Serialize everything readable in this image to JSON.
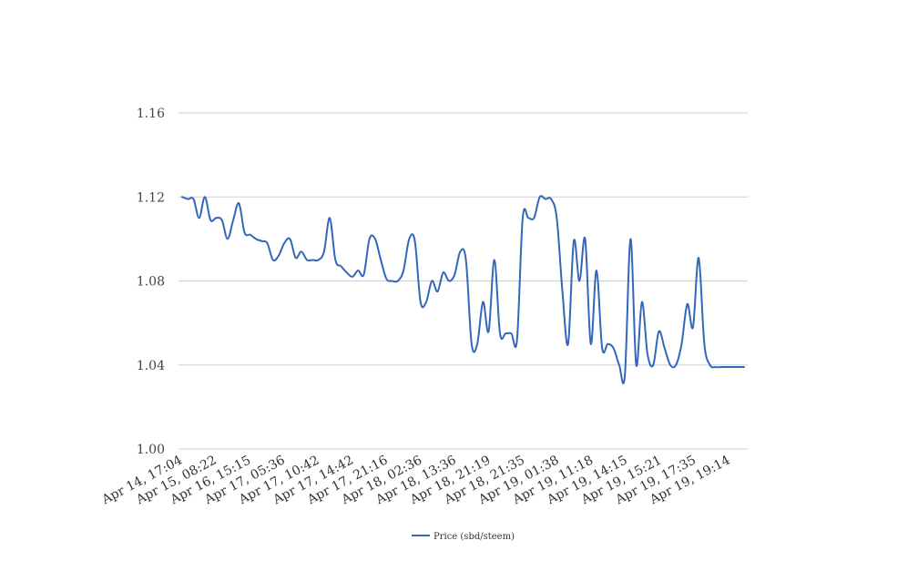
{
  "chart_data": {
    "type": "line",
    "title": "",
    "xlabel": "",
    "ylabel": "",
    "ylim": [
      1.0,
      1.16
    ],
    "yticks": [
      "1.00",
      "1.04",
      "1.08",
      "1.12",
      "1.16"
    ],
    "yticks_values": [
      1.0,
      1.04,
      1.08,
      1.12,
      1.16
    ],
    "grid": true,
    "legend_position": "bottom",
    "xtick_labels": [
      "Apr 14, 17:04",
      "Apr 15, 08:22",
      "Apr 16, 15:15",
      "Apr 17, 05:36",
      "Apr 17, 10:42",
      "Apr 17, 14:42",
      "Apr 17, 21:16",
      "Apr 18, 02:36",
      "Apr 18, 13:36",
      "Apr 18, 21:19",
      "Apr 18, 21:35",
      "Apr 19, 01:38",
      "Apr 19, 11:18",
      "Apr 19, 14:15",
      "Apr 19, 15:21",
      "Apr 19, 17:35",
      "Apr 19, 19:14"
    ],
    "series": [
      {
        "name": "Price (sbd/steem)",
        "color": "#3366bb",
        "values": [
          1.12,
          1.119,
          1.119,
          1.11,
          1.12,
          1.109,
          1.11,
          1.109,
          1.1,
          1.109,
          1.117,
          1.103,
          1.102,
          1.1,
          1.099,
          1.098,
          1.09,
          1.092,
          1.098,
          1.1,
          1.091,
          1.094,
          1.09,
          1.09,
          1.09,
          1.094,
          1.11,
          1.09,
          1.087,
          1.084,
          1.082,
          1.085,
          1.083,
          1.1,
          1.1,
          1.09,
          1.081,
          1.08,
          1.08,
          1.085,
          1.1,
          1.099,
          1.07,
          1.07,
          1.08,
          1.075,
          1.084,
          1.08,
          1.083,
          1.094,
          1.09,
          1.05,
          1.05,
          1.07,
          1.056,
          1.09,
          1.055,
          1.055,
          1.055,
          1.052,
          1.11,
          1.11,
          1.11,
          1.12,
          1.119,
          1.119,
          1.11,
          1.075,
          1.05,
          1.099,
          1.08,
          1.1,
          1.05,
          1.085,
          1.048,
          1.05,
          1.048,
          1.04,
          1.035,
          1.1,
          1.04,
          1.07,
          1.045,
          1.04,
          1.056,
          1.048,
          1.04,
          1.04,
          1.05,
          1.069,
          1.058,
          1.091,
          1.05,
          1.04,
          1.039,
          1.039,
          1.039,
          1.039,
          1.039,
          1.039
        ]
      }
    ]
  }
}
